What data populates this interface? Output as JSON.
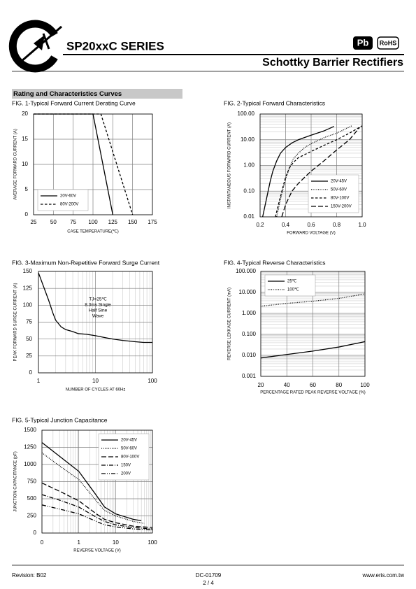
{
  "header": {
    "title": "SP20xxC SERIES",
    "badges": [
      "Pb",
      "RoHS"
    ],
    "subtitle": "Schottky Barrier Rectifiers"
  },
  "section_title": "Rating and Characteristics Curves",
  "chart_data": [
    {
      "type": "line",
      "title": "FIG. 1-Typical Forward Current Derating Curve",
      "xlabel": "CASE  TEMPERATURE(℃)",
      "ylabel": "AVERAGE FORWARD CURRENT (A)",
      "xlim": [
        25,
        175
      ],
      "xticks": [
        25,
        50,
        75,
        100,
        125,
        150,
        175
      ],
      "ylim": [
        0,
        20
      ],
      "yticks": [
        0,
        5,
        10,
        15,
        20
      ],
      "grid": true,
      "legend": "bottom-left",
      "series": [
        {
          "name": "20V-60V",
          "color": "#000000",
          "dash": "solid",
          "x": [
            25,
            100,
            125
          ],
          "values": [
            20,
            20,
            0
          ]
        },
        {
          "name": "80V-200V",
          "color": "#000000",
          "dash": "dashed",
          "x": [
            25,
            110,
            150
          ],
          "values": [
            20,
            20,
            0
          ]
        }
      ]
    },
    {
      "type": "line",
      "title": "FIG. 2-Typical Forward Characteristics",
      "xlabel": "FORWARD VOLTAGE (V)",
      "ylabel": "INSTANTANEOUS FORWARD CURRENT (A)",
      "xlim": [
        0.2,
        1.0
      ],
      "xticks": [
        0.2,
        0.4,
        0.6,
        0.8,
        {
          "value": 1,
          "label": "1.0"
        }
      ],
      "ylim": [
        0.01,
        100
      ],
      "yscale": "log",
      "yticks": [
        0.01,
        {
          "value": 0.1,
          "label": "0.10"
        },
        {
          "value": 1,
          "label": "1.00"
        },
        {
          "value": 10,
          "label": "10.00"
        },
        {
          "value": 100,
          "label": "100.00"
        }
      ],
      "grid": true,
      "minor_grid": "y",
      "legend": "bottom-right",
      "series": [
        {
          "name": "20V-45V",
          "color": "#000000",
          "dash": "solid",
          "x": [
            0.22,
            0.25,
            0.28,
            0.3,
            0.33,
            0.36,
            0.4,
            0.45,
            0.5,
            0.6,
            0.7,
            0.78
          ],
          "values": [
            0.01,
            0.05,
            0.25,
            0.6,
            1.5,
            3,
            5,
            7.5,
            10,
            15,
            22,
            33
          ]
        },
        {
          "name": "50V-60V",
          "color": "#000000",
          "dash": "dotted",
          "x": [
            0.33,
            0.36,
            0.4,
            0.43,
            0.46,
            0.5,
            0.55,
            0.6,
            0.7,
            0.8,
            0.92
          ],
          "values": [
            0.01,
            0.05,
            0.3,
            0.8,
            1.8,
            3,
            5,
            7,
            12,
            18,
            35
          ]
        },
        {
          "name": "80V-100V",
          "color": "#000000",
          "dash": "dashed",
          "x": [
            0.32,
            0.35,
            0.38,
            0.4,
            0.43,
            0.46,
            0.5,
            0.6,
            0.7,
            0.8,
            0.9,
            1.0
          ],
          "values": [
            0.01,
            0.04,
            0.15,
            0.35,
            0.8,
            1.3,
            2,
            3.5,
            6,
            10,
            18,
            35
          ]
        },
        {
          "name": "150V-200V",
          "color": "#000000",
          "dash": "longdash",
          "x": [
            0.37,
            0.4,
            0.45,
            0.5,
            0.55,
            0.6,
            0.7,
            0.8,
            0.9,
            0.98
          ],
          "values": [
            0.01,
            0.03,
            0.1,
            0.2,
            0.35,
            0.6,
            1.5,
            4,
            10,
            30
          ]
        }
      ]
    },
    {
      "type": "line",
      "title": "FIG. 3-Maximum Non-Repetitive Forward Surge Current",
      "xlabel": "NUMBER OF CYCLES AT 60Hz",
      "ylabel": "PEAK FORWARD SURGE CURRENT (A)",
      "xlim": [
        1,
        100
      ],
      "xscale": "log",
      "xticks": [
        1,
        10,
        100
      ],
      "ylim": [
        0,
        150
      ],
      "yticks": [
        0,
        25,
        50,
        75,
        100,
        125,
        150
      ],
      "grid": true,
      "minor_grid": "x",
      "annotation": [
        "TJ=25℃",
        "8.3ms Single",
        "Half Sine",
        "Wave"
      ],
      "series": [
        {
          "color": "#000000",
          "dash": "solid",
          "x": [
            1,
            1.2,
            1.5,
            1.8,
            2,
            2.5,
            3,
            4,
            5,
            7,
            10,
            15,
            20,
            30,
            50,
            70,
            100
          ],
          "values": [
            148,
            130,
            108,
            88,
            78,
            68,
            64,
            61,
            58,
            57,
            55,
            52,
            50,
            48,
            46,
            45,
            45
          ]
        }
      ]
    },
    {
      "type": "line",
      "title": "FIG. 4-Typical Reverse Characteristics",
      "xlabel": "PERCENTAGE RATED PEAK REVERSE VOLTAGE (%)",
      "ylabel": "REVERSE LEKKAGE CURRENT (mA)",
      "xlim": [
        20,
        100
      ],
      "xticks": [
        20,
        40,
        60,
        80,
        100
      ],
      "ylim": [
        0.001,
        100
      ],
      "yscale": "log",
      "yticks": [
        0.001,
        {
          "value": 0.01,
          "label": "0.010"
        },
        {
          "value": 0.1,
          "label": "0.100"
        },
        {
          "value": 1,
          "label": "1.000"
        },
        {
          "value": 10,
          "label": "10.000"
        },
        {
          "value": 100,
          "label": "100.000"
        }
      ],
      "grid": true,
      "minor_grid": "y",
      "legend": "top-left",
      "series": [
        {
          "name": "25℃",
          "color": "#000000",
          "dash": "solid",
          "x": [
            20,
            40,
            60,
            80,
            100
          ],
          "values": [
            0.0075,
            0.011,
            0.016,
            0.025,
            0.045
          ]
        },
        {
          "name": "100℃",
          "color": "#000000",
          "dash": "dotted",
          "x": [
            20,
            40,
            60,
            80,
            100
          ],
          "values": [
            2.2,
            3,
            3.8,
            5.2,
            8.5
          ]
        }
      ]
    },
    {
      "type": "line",
      "title": "FIG. 5-Typical Junction Capacitance",
      "xlabel": "REVERSE VOLTAGE (V)",
      "ylabel": "JUNCTION CAPACITANCE (pF)",
      "xlim": [
        0.1,
        100
      ],
      "xscale": "log",
      "xticks": [
        {
          "value": 0.1,
          "label": "0"
        },
        1,
        10,
        100
      ],
      "ylim": [
        0,
        1500
      ],
      "yticks": [
        0,
        250,
        500,
        750,
        1000,
        1250,
        1500
      ],
      "grid": true,
      "minor_grid": "x",
      "legend": "top-right",
      "series": [
        {
          "name": "20V-45V",
          "color": "#000000",
          "dash": "solid",
          "x": [
            0.1,
            0.3,
            1,
            3,
            5,
            10,
            30,
            50
          ],
          "values": [
            1320,
            1120,
            900,
            550,
            380,
            280,
            200,
            180
          ]
        },
        {
          "name": "50V-60V",
          "color": "#000000",
          "dash": "dotted",
          "x": [
            0.1,
            0.3,
            1,
            3,
            5,
            10,
            30,
            60
          ],
          "values": [
            1170,
            980,
            780,
            470,
            330,
            250,
            170,
            140
          ]
        },
        {
          "name": "80V-100V",
          "color": "#000000",
          "dash": "longdash",
          "x": [
            0.1,
            0.3,
            1,
            3,
            5,
            10,
            30,
            100
          ],
          "values": [
            730,
            610,
            470,
            280,
            200,
            150,
            100,
            80
          ]
        },
        {
          "name": "150V",
          "color": "#000000",
          "dash": "dashdot",
          "x": [
            0.1,
            0.3,
            1,
            3,
            5,
            10,
            30,
            100
          ],
          "values": [
            560,
            480,
            380,
            230,
            170,
            120,
            80,
            60
          ]
        },
        {
          "name": "200V",
          "color": "#000000",
          "dash": "dashdotdot",
          "x": [
            0.1,
            0.3,
            1,
            3,
            5,
            10,
            30,
            100
          ],
          "values": [
            410,
            350,
            280,
            170,
            120,
            90,
            60,
            45
          ]
        }
      ]
    }
  ],
  "footer": {
    "revision": "Revision: B02",
    "document": "DC-01709",
    "page": "2 / 4",
    "website": "www.eris.com.tw"
  }
}
